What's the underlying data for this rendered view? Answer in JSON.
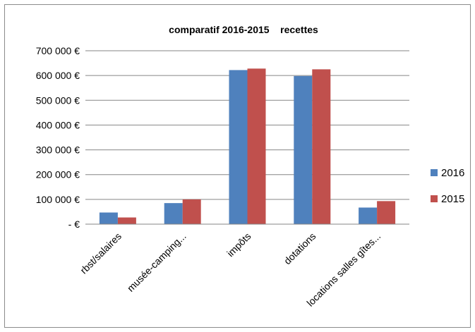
{
  "chart_data": {
    "type": "bar",
    "title": "comparatif 2016-2015    recettes",
    "categories": [
      "rbst/salaires",
      "musée-camping...",
      "impôts",
      "dotations",
      "locations salles gîtes..."
    ],
    "series": [
      {
        "name": "2016",
        "values": [
          47000,
          85000,
          622000,
          598000,
          67000
        ],
        "color": "#4f81bd"
      },
      {
        "name": "2015",
        "values": [
          27000,
          100000,
          628000,
          625000,
          93000
        ],
        "color": "#c0504d"
      }
    ],
    "ylim": [
      0,
      700000
    ],
    "yticks": [
      {
        "value": 0,
        "label": "-   €"
      },
      {
        "value": 100000,
        "label": "100 000 €"
      },
      {
        "value": 200000,
        "label": "200 000 €"
      },
      {
        "value": 300000,
        "label": "300 000 €"
      },
      {
        "value": 400000,
        "label": "400 000 €"
      },
      {
        "value": 500000,
        "label": "500 000 €"
      },
      {
        "value": 600000,
        "label": "600 000 €"
      },
      {
        "value": 700000,
        "label": "700 000 €"
      }
    ],
    "grid": true,
    "legend_position": "right"
  }
}
